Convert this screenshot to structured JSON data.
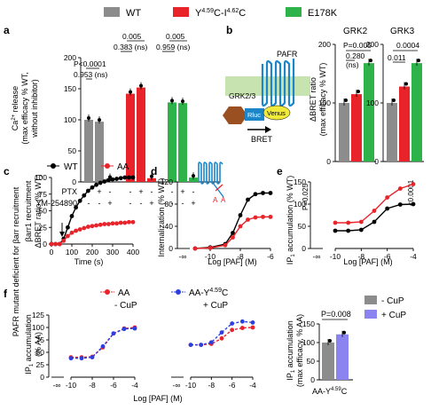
{
  "legend": {
    "items": [
      {
        "label": "WT",
        "color": "#8c8c8c"
      },
      {
        "label": "Y4.59C-I4.62C",
        "color": "#e8232a"
      },
      {
        "label": "E178K",
        "color": "#2db34a"
      }
    ]
  },
  "panels": {
    "a": {
      "label": "a",
      "ylabel1": "Ca2+ release",
      "ylabel2": "(max efficacy % WT,",
      "ylabel3": "without inhibitor)",
      "row1": "PTX",
      "row2": "YM-254890",
      "signs1": [
        "-",
        "+",
        "-",
        "-",
        "+",
        "-",
        "-",
        "+",
        "-"
      ],
      "signs2": [
        "-",
        "-",
        "+",
        "-",
        "-",
        "+",
        "-",
        "-",
        "+"
      ],
      "annotations": [
        "P<0.0001",
        "0.953 (ns)",
        "0.005",
        "0.383 (ns)",
        "0.005",
        "0.959 (ns)"
      ],
      "chart_data": {
        "type": "bar",
        "categories": [
          "WT",
          "WT+PTX",
          "WT+YM",
          "Y-I",
          "Y-I+PTX",
          "Y-I+YM",
          "E178K",
          "E178K+PTX",
          "E178K+YM"
        ],
        "values": [
          100,
          97,
          5,
          142,
          152,
          6,
          128,
          127,
          7
        ],
        "ylim": [
          0,
          200
        ],
        "yticks": [
          0,
          50,
          100,
          150,
          200
        ]
      }
    },
    "b": {
      "label": "b",
      "schematic": {
        "pafr": "PAFR",
        "grk": "GRK2/3",
        "rluc": "Rluc",
        "venus": "Venus",
        "bret": "BRET"
      },
      "ylabel1": "ΔBRET ratio",
      "ylabel2": "(max efficacy % WT)",
      "titles": [
        "GRK2",
        "GRK3"
      ],
      "annotations_grk2": [
        "P=0.005",
        "0.280",
        "(ns)"
      ],
      "annotations_grk3": [
        "0.0004",
        "0.011"
      ],
      "chart_data": {
        "type": "bar",
        "groups": [
          {
            "name": "GRK2",
            "values": [
              100,
              115,
              168
            ]
          },
          {
            "name": "GRK3",
            "values": [
              100,
              128,
              168
            ]
          }
        ],
        "ylim": [
          0,
          200
        ],
        "yticks": [
          0,
          100,
          200
        ]
      }
    },
    "c": {
      "label": "c",
      "series_labels": [
        "WT",
        "AA"
      ],
      "ylabel1": "PAFR mutant deficient for βarr recruitment",
      "ylabel2": "βarr1 recruitment",
      "ylabel3": "ΔBRET ratio (% WT)",
      "xlabel": "Time (s)",
      "chart_data": {
        "type": "line",
        "xlim": [
          0,
          400
        ],
        "ylim": [
          0,
          100
        ],
        "xticks": [
          0,
          100,
          200,
          300,
          400
        ],
        "yticks": [
          0,
          25,
          50,
          75,
          100
        ],
        "series": [
          {
            "name": "WT",
            "x": [
              0,
              20,
              40,
              60,
              80,
              100,
              120,
              140,
              160,
              180,
              200,
              220,
              240,
              260,
              280,
              300,
              320,
              340,
              360,
              380,
              400
            ],
            "y": [
              0,
              0,
              0,
              8,
              25,
              42,
              55,
              65,
              73,
              80,
              85,
              89,
              92,
              94,
              96,
              97,
              98,
              99,
              100,
              100,
              100
            ]
          },
          {
            "name": "AA",
            "x": [
              0,
              20,
              40,
              60,
              80,
              100,
              120,
              140,
              160,
              180,
              200,
              220,
              240,
              260,
              280,
              300,
              320,
              340,
              360,
              380,
              400
            ],
            "y": [
              0,
              0,
              0,
              5,
              12,
              17,
              20,
              22,
              24,
              26,
              27,
              28,
              29,
              30,
              30,
              31,
              31,
              32,
              32,
              33,
              33
            ]
          }
        ]
      }
    },
    "d": {
      "label": "d",
      "ylabel": "Internalization (% WT)",
      "xlabel": "Log [PAF] (M)",
      "aa": "A",
      "chart_data": {
        "type": "line",
        "xlim": [
          -11,
          -6
        ],
        "ylim": [
          0,
          120
        ],
        "xticks": [
          -10,
          -8,
          -6
        ],
        "yticks": [
          0,
          40,
          80,
          120
        ],
        "series": [
          {
            "name": "WT",
            "x": [
              -11,
              -10,
              -9,
              -8.5,
              -8,
              -7.5,
              -7,
              -6.5,
              -6
            ],
            "y": [
              0,
              2,
              8,
              28,
              60,
              88,
              98,
              100,
              100
            ]
          },
          {
            "name": "AA",
            "x": [
              -11,
              -10,
              -9,
              -8.5,
              -8,
              -7.5,
              -7,
              -6.5,
              -6
            ],
            "y": [
              0,
              1,
              6,
              20,
              40,
              52,
              56,
              57,
              57
            ]
          }
        ]
      }
    },
    "e": {
      "label": "e",
      "ylabel": "IP1 accumulation (% WT)",
      "xlabel": "Log [PAF] (M)",
      "p1": "P=0.025",
      "p2": "<0.0001",
      "chart_data": {
        "type": "line",
        "xlim": [
          -10,
          -4
        ],
        "ylim": [
          0,
          150
        ],
        "xticks": [
          -10,
          -8,
          -6,
          -4
        ],
        "yticks": [
          0,
          50,
          100,
          150
        ],
        "series": [
          {
            "name": "WT",
            "x": [
              -10,
              -9,
              -8,
              -7,
              -6,
              -5,
              -4
            ],
            "y": [
              40,
              40,
              42,
              60,
              90,
              99,
              100
            ]
          },
          {
            "name": "AA",
            "x": [
              -10,
              -9,
              -8,
              -7,
              -6,
              -5,
              -4
            ],
            "y": [
              58,
              58,
              60,
              85,
              115,
              135,
              145
            ]
          }
        ]
      }
    },
    "f": {
      "label": "f",
      "legend": [
        "AA",
        "AA-Y4.59C"
      ],
      "cond": [
        "- CuP",
        "+ CuP"
      ],
      "ylabel1": "IP1 accumulation",
      "ylabel2": "(% AA)",
      "xlabel": "Log [PAF] (M)",
      "chart_data": [
        {
          "type": "line",
          "xlim": [
            -10,
            -4
          ],
          "ylim": [
            0,
            125
          ],
          "xticks": [
            -10,
            -8,
            -6,
            -4
          ],
          "yticks": [
            0,
            25,
            50,
            75,
            100,
            125
          ],
          "series": [
            {
              "name": "AA",
              "x": [
                -10,
                -9,
                -8,
                -7,
                -6,
                -5,
                -4
              ],
              "y": [
                40,
                40,
                41,
                60,
                88,
                98,
                100
              ]
            },
            {
              "name": "AA-Y4.59C",
              "x": [
                -10,
                -9,
                -8,
                -7,
                -6,
                -5,
                -4
              ],
              "y": [
                38,
                38,
                40,
                62,
                88,
                97,
                98
              ]
            }
          ]
        },
        {
          "type": "line",
          "xlim": [
            -10,
            -4
          ],
          "ylim": [
            0,
            125
          ],
          "xticks": [
            -10,
            -8,
            -6,
            -4
          ],
          "yticks": [
            0,
            25,
            50,
            75,
            100,
            125
          ],
          "series": [
            {
              "name": "AA",
              "x": [
                -10,
                -9,
                -8,
                -7,
                -6,
                -5,
                -4
              ],
              "y": [
                65,
                65,
                67,
                78,
                95,
                99,
                100
              ]
            },
            {
              "name": "AA-Y4.59C",
              "x": [
                -10,
                -9,
                -8,
                -7,
                -6,
                -5,
                -4
              ],
              "y": [
                65,
                65,
                70,
                90,
                108,
                112,
                110
              ]
            }
          ]
        }
      ]
    },
    "g": {
      "legend": [
        "- CuP",
        "+ CuP"
      ],
      "ylabel1": "IP1 accumulation",
      "ylabel2": "(max efficacy, % AA)",
      "p": "P=0.008",
      "xcat": "AA-Y4.59C",
      "chart_data": {
        "type": "bar",
        "categories": [
          "- CuP",
          "+ CuP"
        ],
        "values": [
          100,
          122
        ],
        "ylim": [
          0,
          150
        ],
        "yticks": [
          0,
          50,
          100,
          150
        ]
      }
    }
  },
  "colors": {
    "wt": "#8c8c8c",
    "red": "#e8232a",
    "green": "#2db34a",
    "blue": "#2b3ee0",
    "lightblue": "#8a83f0",
    "black": "#000000"
  }
}
